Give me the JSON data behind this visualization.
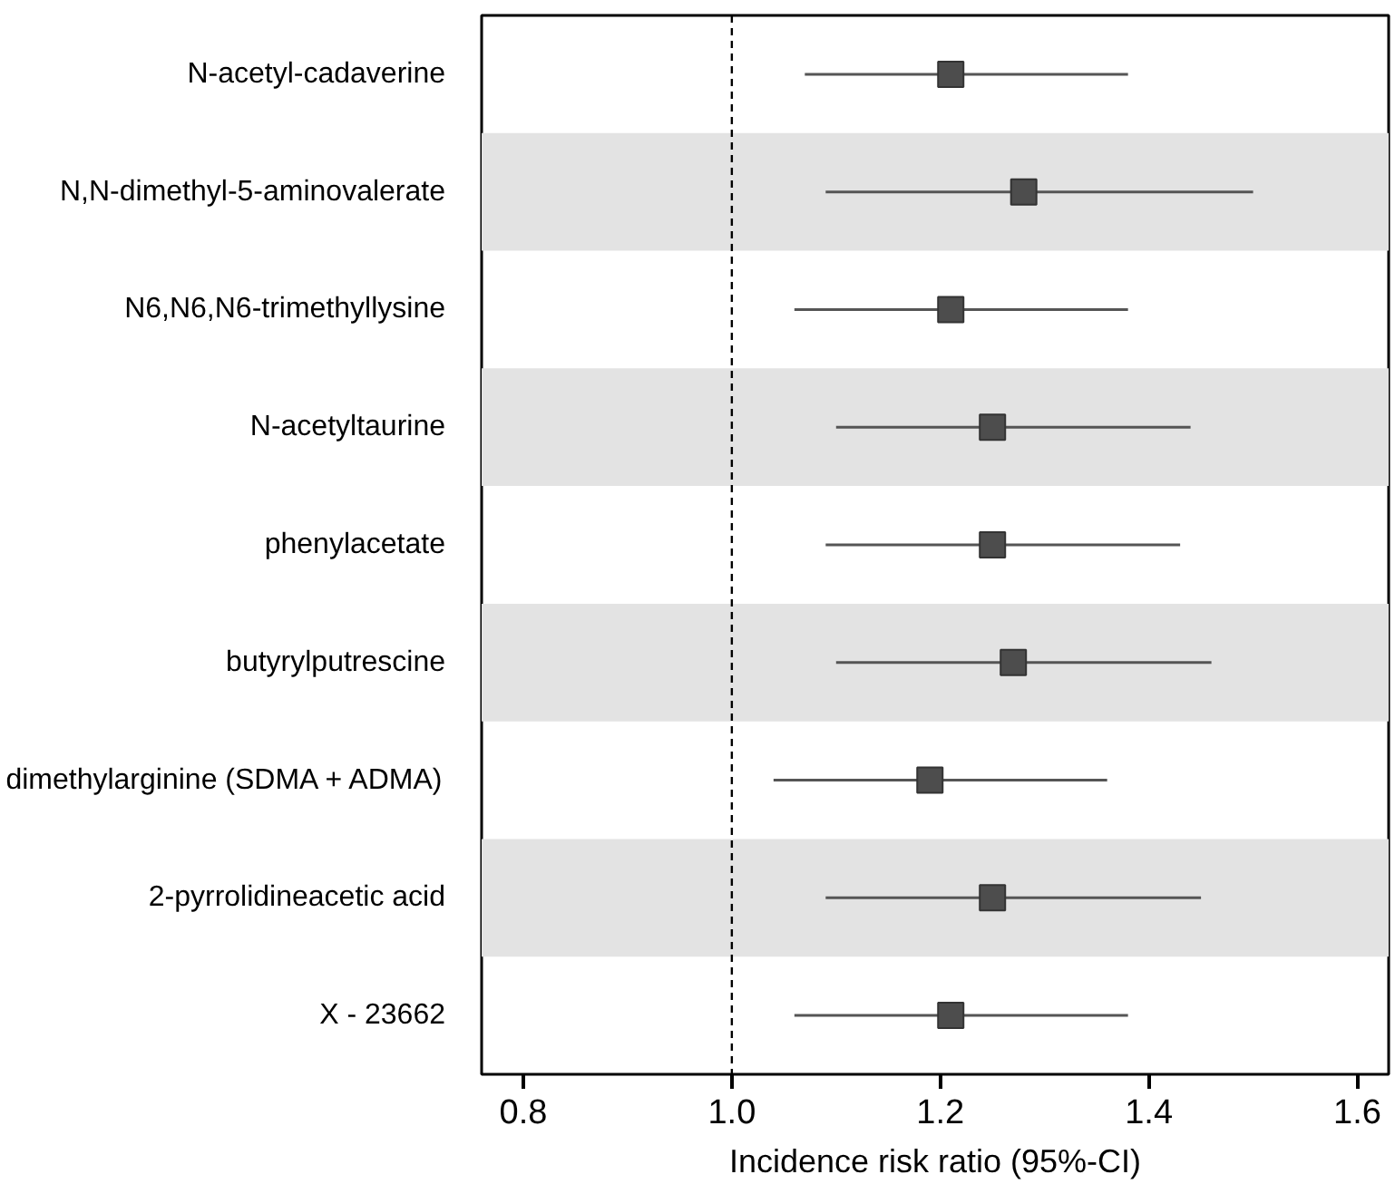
{
  "chart_data": {
    "type": "scatter",
    "orientation": "horizontal",
    "categories": [
      "N-acetyl-cadaverine",
      "N,N-dimethyl-5-aminovalerate",
      "N6,N6,N6-trimethyllysine",
      "N-acetyltaurine",
      "phenylacetate",
      "butyrylputrescine",
      "dimethylarginine (SDMA + ADMA)",
      "2-pyrrolidineacetic acid",
      "X - 23662"
    ],
    "color": "#4d4d4d",
    "values": [
      1.21,
      1.28,
      1.21,
      1.25,
      1.25,
      1.27,
      1.19,
      1.25,
      1.21
    ],
    "errors": [
      [
        1.07,
        1.38
      ],
      [
        1.09,
        1.5
      ],
      [
        1.06,
        1.38
      ],
      [
        1.1,
        1.44
      ],
      [
        1.09,
        1.43
      ],
      [
        1.1,
        1.46
      ],
      [
        1.04,
        1.36
      ],
      [
        1.09,
        1.45
      ],
      [
        1.06,
        1.38
      ]
    ],
    "xlim": [
      0.76,
      1.63
    ],
    "xticks": [
      {
        "value": 0.8,
        "label": "0.8"
      },
      {
        "value": 1.0,
        "label": "1.0"
      },
      {
        "value": 1.2,
        "label": "1.2"
      },
      {
        "value": 1.4,
        "label": "1.4"
      },
      {
        "value": 1.6,
        "label": "1.6"
      }
    ],
    "xlabel": "Incidence risk ratio (95%-CI)",
    "ref_lines": [
      {
        "axis": "x",
        "value": 1.0,
        "color": "#000000",
        "line_style": "dashed"
      }
    ],
    "bands": [
      {
        "axis": "y",
        "from": "N,N-dimethyl-5-aminovalerate",
        "to": "N,N-dimethyl-5-aminovalerate",
        "color": "#e3e3e3"
      },
      {
        "axis": "y",
        "from": "N-acetyltaurine",
        "to": "N-acetyltaurine",
        "color": "#e3e3e3"
      },
      {
        "axis": "y",
        "from": "butyrylputrescine",
        "to": "butyrylputrescine",
        "color": "#e3e3e3"
      },
      {
        "axis": "y",
        "from": "2-pyrrolidineacetic acid",
        "to": "2-pyrrolidineacetic acid",
        "color": "#e3e3e3"
      }
    ],
    "marker": "square",
    "grid": false
  }
}
